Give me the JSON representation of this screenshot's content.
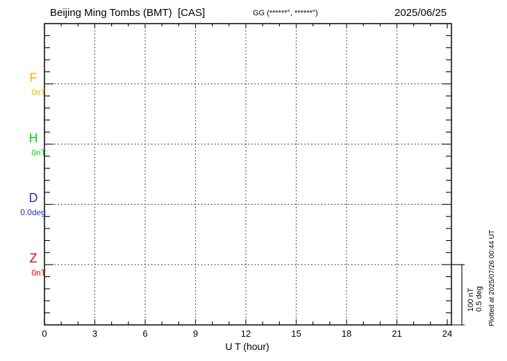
{
  "header": {
    "title": "Beijing Ming Tombs (BMT)  [CAS]",
    "coordinates_label": "GG (******°, ******°)",
    "date": "2025/06/25"
  },
  "chart_data": {
    "type": "line",
    "title": "Beijing Ming Tombs (BMT) [CAS]",
    "date": "2025/06/25",
    "xlabel": "U T (hour)",
    "xlim": [
      0,
      24
    ],
    "x_major_ticks": [
      0,
      3,
      6,
      9,
      12,
      15,
      18,
      21,
      24
    ],
    "x_minor_step_hours": 1,
    "grid": "dotted",
    "legend_position": "left",
    "series": [
      {
        "name": "F",
        "baseline_label": "0nT",
        "baseline_value": 0,
        "unit": "nT",
        "color": "#ffb300",
        "values": []
      },
      {
        "name": "H",
        "baseline_label": "0nT",
        "baseline_value": 0,
        "unit": "nT",
        "color": "#00d400",
        "values": []
      },
      {
        "name": "D",
        "baseline_label": "0.0deg",
        "baseline_value": 0.0,
        "unit": "deg",
        "color": "#2233cc",
        "values": []
      },
      {
        "name": "Z",
        "baseline_label": "0nT",
        "baseline_value": 0,
        "unit": "nT",
        "color": "#e80000",
        "values": []
      }
    ],
    "note": "Plot area is empty - no data traces drawn, only dotted baselines and 3-hour gridlines",
    "scale_bar": {
      "labels": [
        "100 nT",
        "0.5 deg"
      ]
    },
    "plotted_at": "Plotted at 2025/07/26 00:44 UT"
  }
}
